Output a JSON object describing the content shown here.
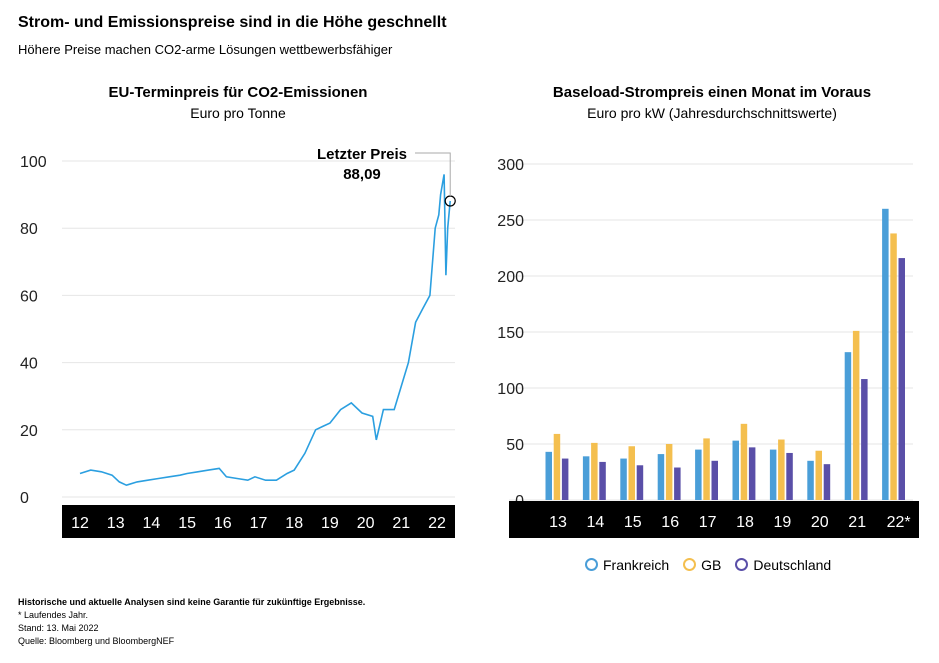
{
  "title": "Strom- und Emissionspreise sind in die Höhe geschnellt",
  "subtitle": "Höhere Preise machen CO2-arme Lösungen wettbewerbsfähiger",
  "footer": {
    "disclaimer": "Historische und aktuelle Analysen sind keine Garantie für zukünftige Ergebnisse.",
    "note": "* Laufendes Jahr.",
    "date": "Stand: 13. Mai 2022",
    "source": "Quelle: Bloomberg und BloombergNEF"
  },
  "chart_data": [
    {
      "type": "line",
      "title": "EU-Terminpreis für CO2-Emissionen",
      "subtitle": "Euro pro Tonne",
      "ylim": [
        0,
        100
      ],
      "yticks": [
        0,
        20,
        40,
        60,
        80,
        100
      ],
      "xticks": [
        "12",
        "13",
        "14",
        "15",
        "16",
        "17",
        "18",
        "19",
        "20",
        "21",
        "22"
      ],
      "annotation": {
        "label": "Letzter Preis",
        "value": "88,09"
      },
      "color": "#2b9fe0",
      "x": [
        2012.0,
        2012.3,
        2012.6,
        2012.9,
        2013.1,
        2013.3,
        2013.6,
        2013.9,
        2014.2,
        2014.5,
        2014.8,
        2015.0,
        2015.3,
        2015.6,
        2015.9,
        2016.1,
        2016.4,
        2016.7,
        2016.9,
        2017.2,
        2017.5,
        2017.8,
        2018.0,
        2018.3,
        2018.6,
        2018.8,
        2019.0,
        2019.3,
        2019.6,
        2019.9,
        2020.2,
        2020.3,
        2020.5,
        2020.8,
        2021.0,
        2021.2,
        2021.4,
        2021.6,
        2021.8,
        2021.95,
        2022.05,
        2022.1,
        2022.2,
        2022.25,
        2022.3,
        2022.37
      ],
      "y": [
        7,
        8,
        7.5,
        6.5,
        4.5,
        3.5,
        4.5,
        5,
        5.5,
        6,
        6.5,
        7,
        7.5,
        8,
        8.5,
        6,
        5.5,
        5,
        6,
        5,
        5,
        7,
        8,
        13,
        20,
        21,
        22,
        26,
        28,
        25,
        24,
        17,
        26,
        26,
        33,
        40,
        52,
        56,
        60,
        80,
        84,
        90,
        96,
        66,
        80,
        88.09
      ]
    },
    {
      "type": "bar",
      "title": "Baseload-Strompreis einen Monat im Voraus",
      "subtitle": "Euro pro kW (Jahresdurchschnittswerte)",
      "ylim": [
        0,
        300
      ],
      "yticks": [
        0,
        50,
        100,
        150,
        200,
        250,
        300
      ],
      "categories": [
        "13",
        "14",
        "15",
        "16",
        "17",
        "18",
        "19",
        "20",
        "21",
        "22*"
      ],
      "series": [
        {
          "name": "Frankreich",
          "color": "#4a9ed8",
          "values": [
            43,
            39,
            37,
            41,
            45,
            53,
            45,
            35,
            132,
            260
          ]
        },
        {
          "name": "GB",
          "color": "#f4bf4f",
          "values": [
            59,
            51,
            48,
            50,
            55,
            68,
            54,
            44,
            151,
            238
          ]
        },
        {
          "name": "Deutschland",
          "color": "#5a4fa8",
          "values": [
            37,
            34,
            31,
            29,
            35,
            47,
            42,
            32,
            108,
            216
          ]
        }
      ]
    }
  ]
}
